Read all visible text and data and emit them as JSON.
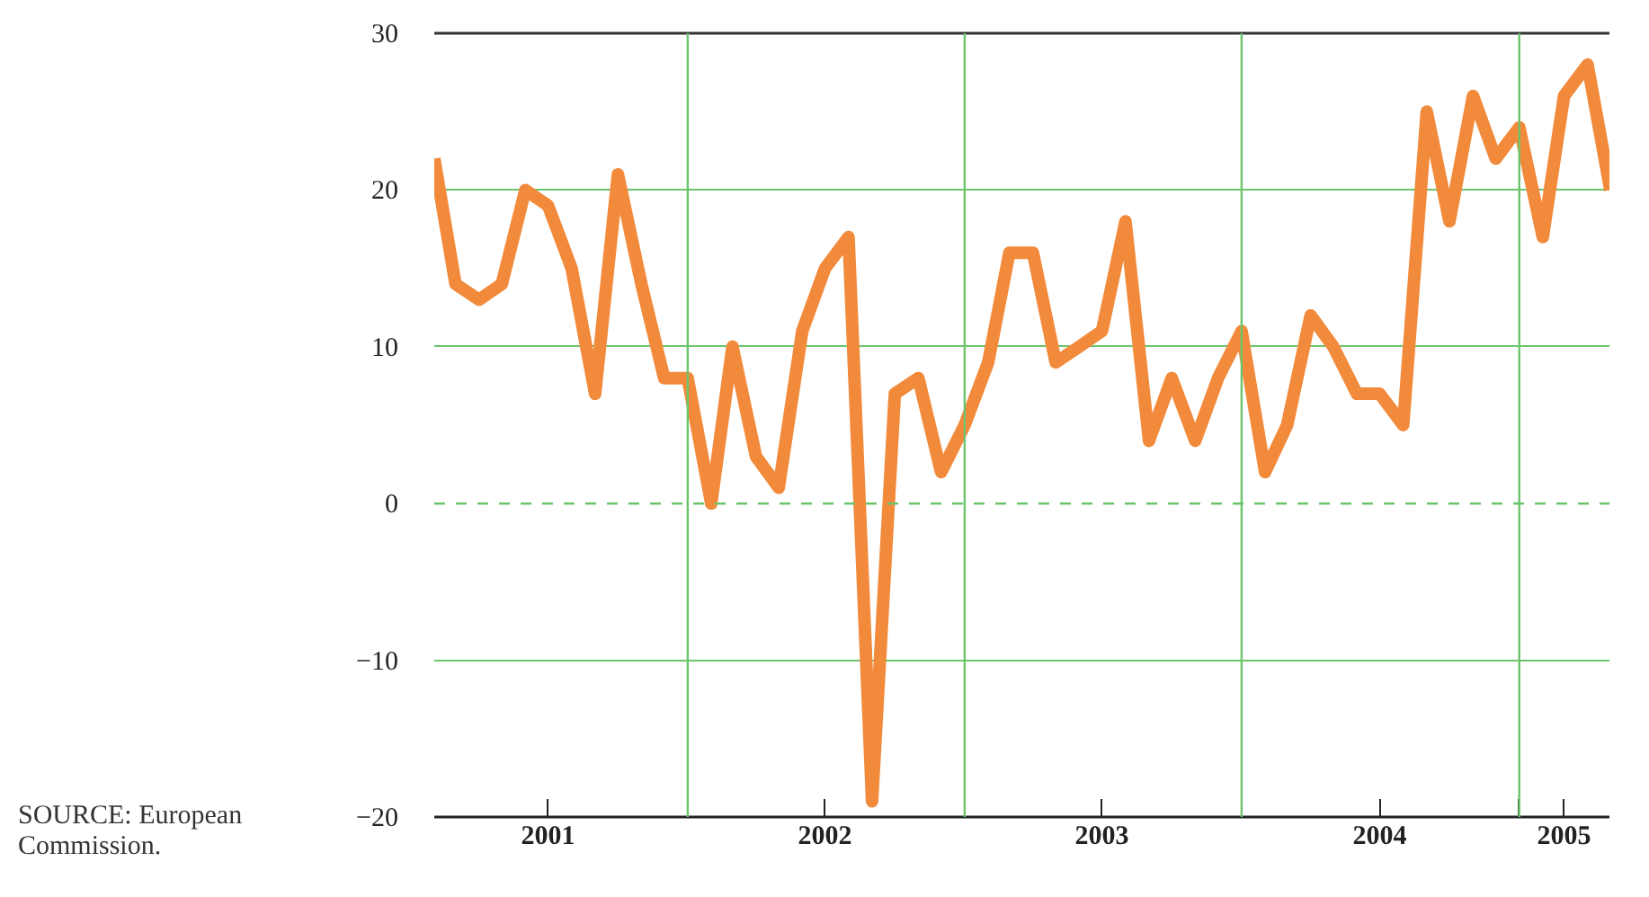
{
  "chart_data": {
    "type": "line",
    "x": [
      "2001-02",
      "2001-03",
      "2001-04",
      "2001-05",
      "2001-06",
      "2001-07",
      "2001-08",
      "2001-09",
      "2001-10",
      "2001-11",
      "2001-12",
      "2002-01",
      "2002-02",
      "2002-03",
      "2002-04",
      "2002-05",
      "2002-06",
      "2002-07",
      "2002-08",
      "2002-09",
      "2002-10",
      "2002-11",
      "2002-12",
      "2003-01",
      "2003-02",
      "2003-03",
      "2003-04",
      "2003-05",
      "2003-06",
      "2003-07",
      "2003-08",
      "2003-09",
      "2003-10",
      "2003-11",
      "2003-12",
      "2004-01",
      "2004-02",
      "2004-03",
      "2004-04",
      "2004-05",
      "2004-06",
      "2004-07",
      "2004-08",
      "2004-09",
      "2004-10",
      "2004-11",
      "2004-12",
      "2005-01",
      "2005-02",
      "2005-03",
      "2005-04",
      "2005-05"
    ],
    "series": [
      {
        "color": "#f28a3c",
        "values": [
          22,
          14,
          13,
          14,
          20,
          19,
          15,
          7,
          21,
          14,
          8,
          8,
          0,
          10,
          3,
          1,
          11,
          15,
          17,
          -19,
          7,
          8,
          2,
          5,
          9,
          16,
          16,
          9,
          10,
          11,
          18,
          4,
          8,
          4,
          8,
          11,
          2,
          5,
          12,
          10,
          7,
          7,
          5,
          25,
          18,
          26,
          22,
          24,
          17,
          26,
          28,
          20
        ]
      }
    ],
    "xlim": [
      "2001-02",
      "2005-05"
    ],
    "xticks": [
      {
        "value": "2001-07",
        "label": "2001"
      },
      {
        "value": "2002-01",
        "label": null
      },
      {
        "value": "2002-07",
        "label": "2002"
      },
      {
        "value": "2003-01",
        "label": null
      },
      {
        "value": "2003-07",
        "label": "2003"
      },
      {
        "value": "2004-01",
        "label": null
      },
      {
        "value": "2004-07",
        "label": "2004"
      },
      {
        "value": "2005-01",
        "label": null
      },
      {
        "value": "2005-03",
        "label": "2005"
      }
    ],
    "ylim": [
      -20,
      30
    ],
    "yticks": [
      {
        "value": -20,
        "label": "−20"
      },
      {
        "value": -10,
        "label": "−10"
      },
      0,
      10,
      20,
      30
    ],
    "grid": "y",
    "ref_lines": [
      {
        "axis": "y",
        "value": 0,
        "label": null,
        "color": "#6cc56c",
        "line_style": "dashed"
      },
      {
        "axis": "x",
        "value": "2002-01",
        "label": null,
        "color": "#6cc56c"
      },
      {
        "axis": "x",
        "value": "2003-01",
        "label": null,
        "color": "#6cc56c"
      },
      {
        "axis": "x",
        "value": "2004-01",
        "label": null,
        "color": "#6cc56c"
      },
      {
        "axis": "x",
        "value": "2005-01",
        "label": null,
        "color": "#6cc56c"
      }
    ],
    "line_style": "solid",
    "marker": "none",
    "annotations": [
      "SOURCE: European Commission."
    ]
  }
}
